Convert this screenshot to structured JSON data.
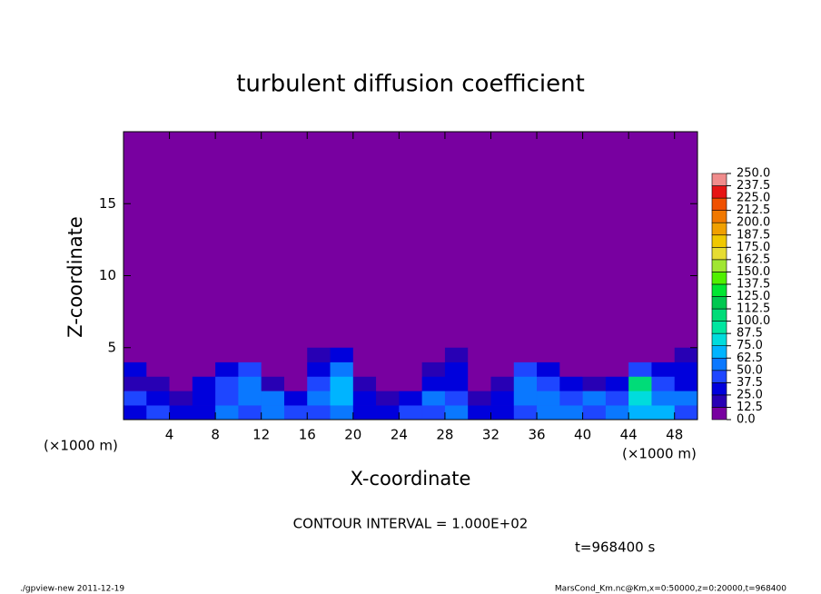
{
  "chart_data": {
    "type": "contour",
    "title": "turbulent diffusion coefficient",
    "xlabel": "X-coordinate",
    "ylabel": "Z-coordinate",
    "xunit": "(×1000 m)",
    "yunit": "(×1000 m)",
    "note": "CONTOUR INTERVAL = 1.000E+02",
    "time": "t=968400 s",
    "footer_left": "./gpview-new  2011-12-19",
    "footer_right": "MarsCond_Km.nc@Km,x=0:50000,z=0:20000,t=968400",
    "xlim": [
      0,
      50
    ],
    "ylim": [
      0,
      20
    ],
    "xticks": [
      4,
      8,
      12,
      16,
      20,
      24,
      28,
      32,
      36,
      40,
      44,
      48
    ],
    "yticks": [
      5,
      10,
      15
    ],
    "x": [
      1,
      3,
      5,
      7,
      9,
      11,
      13,
      15,
      17,
      19,
      21,
      23,
      25,
      27,
      29,
      31,
      33,
      35,
      37,
      39,
      41,
      43,
      45,
      47,
      49
    ],
    "z": [
      0.5,
      1.5,
      2.5,
      3.5,
      4.5
    ],
    "values": [
      [
        30,
        40,
        25,
        35,
        50,
        45,
        60,
        45,
        40,
        55,
        35,
        30,
        40,
        45,
        50,
        35,
        30,
        45,
        60,
        50,
        40,
        55,
        65,
        70,
        45
      ],
      [
        40,
        30,
        20,
        35,
        45,
        60,
        50,
        30,
        55,
        65,
        25,
        15,
        30,
        50,
        40,
        20,
        25,
        60,
        55,
        45,
        50,
        40,
        75,
        60,
        50
      ],
      [
        20,
        15,
        10,
        25,
        40,
        55,
        15,
        10,
        40,
        70,
        20,
        5,
        10,
        30,
        35,
        10,
        15,
        50,
        45,
        35,
        20,
        30,
        110,
        45,
        30
      ],
      [
        35,
        5,
        5,
        10,
        30,
        40,
        5,
        5,
        30,
        50,
        10,
        5,
        5,
        20,
        25,
        5,
        10,
        40,
        30,
        10,
        5,
        10,
        40,
        35,
        25
      ],
      [
        10,
        0,
        0,
        0,
        5,
        5,
        0,
        0,
        20,
        35,
        5,
        0,
        0,
        5,
        15,
        0,
        0,
        10,
        5,
        0,
        0,
        0,
        5,
        10,
        15
      ]
    ],
    "levels": [
      {
        "value": 0,
        "label": "0.0"
      },
      {
        "value": 12.5,
        "label": "12.5"
      },
      {
        "value": 25,
        "label": "25.0"
      },
      {
        "value": 37.5,
        "label": "37.5"
      },
      {
        "value": 50,
        "label": "50.0"
      },
      {
        "value": 62.5,
        "label": "62.5"
      },
      {
        "value": 75,
        "label": "75.0"
      },
      {
        "value": 87.5,
        "label": "87.5"
      },
      {
        "value": 100,
        "label": "100.0"
      },
      {
        "value": 112.5,
        "label": "112.5"
      },
      {
        "value": 125,
        "label": "125.0"
      },
      {
        "value": 137.5,
        "label": "137.5"
      },
      {
        "value": 150,
        "label": "150.0"
      },
      {
        "value": 162.5,
        "label": "162.5"
      },
      {
        "value": 175,
        "label": "175.0"
      },
      {
        "value": 187.5,
        "label": "187.5"
      },
      {
        "value": 200,
        "label": "200.0"
      },
      {
        "value": 212.5,
        "label": "212.5"
      },
      {
        "value": 225,
        "label": "225.0"
      },
      {
        "value": 237.5,
        "label": "237.5"
      },
      {
        "value": 250,
        "label": "250.0"
      }
    ],
    "colors": [
      "#7800a0",
      "#2800b4",
      "#0000dc",
      "#1e46ff",
      "#0a78ff",
      "#00b4ff",
      "#00dcdc",
      "#00e6a0",
      "#00dc78",
      "#00c850",
      "#00e632",
      "#50f000",
      "#a0e632",
      "#e6dc32",
      "#f0c800",
      "#f0a000",
      "#f07800",
      "#f05000",
      "#e61414",
      "#f08c8c"
    ]
  }
}
